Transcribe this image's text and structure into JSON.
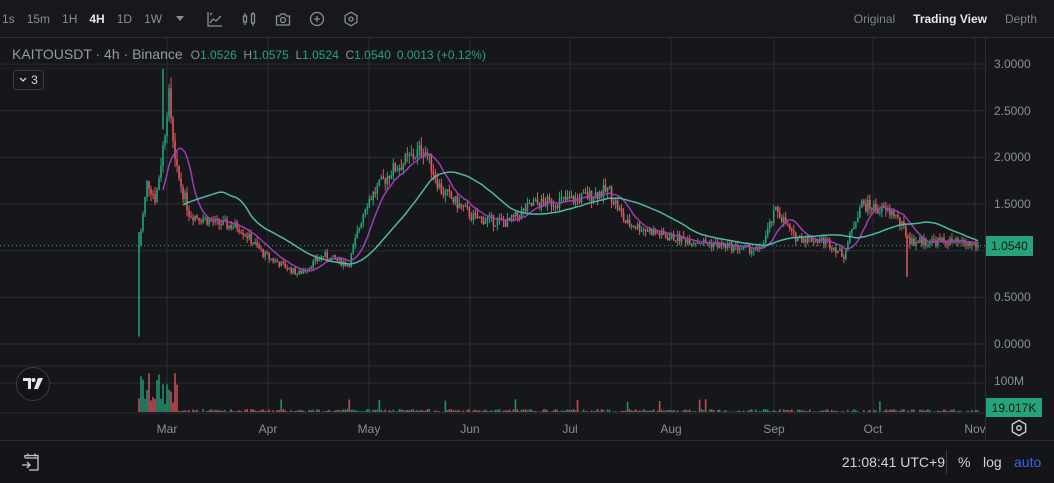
{
  "toolbar": {
    "timeframes": [
      {
        "label": "1s",
        "active": false
      },
      {
        "label": "15m",
        "active": false
      },
      {
        "label": "1H",
        "active": false
      },
      {
        "label": "4H",
        "active": true
      },
      {
        "label": "1D",
        "active": false
      },
      {
        "label": "1W",
        "active": false
      }
    ],
    "icons": [
      "indicators-icon",
      "candlestick-icon",
      "screenshot-icon",
      "add-icon",
      "settings-icon"
    ],
    "view_tabs": [
      {
        "label": "Original",
        "active": false
      },
      {
        "label": "Trading View",
        "active": true
      },
      {
        "label": "Depth",
        "active": false
      }
    ]
  },
  "legend": {
    "symbol": "KAITOUSDT · 4h · Binance",
    "open_label": "O",
    "open": "1.0526",
    "high_label": "H",
    "high": "1.0575",
    "low_label": "L",
    "low": "1.0524",
    "close_label": "C",
    "close": "1.0540",
    "change": "0.0013 (+0.12%)",
    "indicator_count": "3"
  },
  "price_axis": {
    "ticks": [
      "3.0000",
      "2.5000",
      "2.0000",
      "1.5000",
      "0.5000",
      "0.0000"
    ],
    "current_price": "1.0540",
    "volume_tick": "100M",
    "current_volume": "19.017K"
  },
  "time_axis": {
    "labels": [
      "Mar",
      "Apr",
      "May",
      "Jun",
      "Jul",
      "Aug",
      "Sep",
      "Oct",
      "Nov"
    ]
  },
  "footer": {
    "clock": "21:08:41 UTC+9",
    "percent_label": "%",
    "log_label": "log",
    "auto_label": "auto"
  },
  "colors": {
    "up": "#26a37a",
    "down": "#e0575f",
    "ma_fast": "#9c3fb0",
    "ma_slow": "#4fb8a0",
    "auto_active": "#3a63e0"
  },
  "chart_data": {
    "type": "candlestick",
    "title": "KAITOUSDT · 4h · Binance",
    "x_labels": [
      "Mar",
      "Apr",
      "May",
      "Jun",
      "Jul",
      "Aug",
      "Sep",
      "Oct",
      "Nov"
    ],
    "ylim": [
      -0.1,
      3.3
    ],
    "y_ticks": [
      0.0,
      0.5,
      1.0,
      1.5,
      2.0,
      2.5,
      3.0
    ],
    "approx_closes": [
      {
        "x": 0.0,
        "v": 1.05
      },
      {
        "x": 0.01,
        "v": 1.75
      },
      {
        "x": 0.02,
        "v": 1.55
      },
      {
        "x": 0.03,
        "v": 2.2
      },
      {
        "x": 0.035,
        "v": 2.7
      },
      {
        "x": 0.045,
        "v": 1.85
      },
      {
        "x": 0.06,
        "v": 1.4
      },
      {
        "x": 0.09,
        "v": 1.3
      },
      {
        "x": 0.12,
        "v": 1.25
      },
      {
        "x": 0.15,
        "v": 0.95
      },
      {
        "x": 0.19,
        "v": 0.75
      },
      {
        "x": 0.22,
        "v": 0.95
      },
      {
        "x": 0.25,
        "v": 0.85
      },
      {
        "x": 0.27,
        "v": 1.5
      },
      {
        "x": 0.3,
        "v": 1.85
      },
      {
        "x": 0.34,
        "v": 2.1
      },
      {
        "x": 0.36,
        "v": 1.65
      },
      {
        "x": 0.4,
        "v": 1.35
      },
      {
        "x": 0.44,
        "v": 1.3
      },
      {
        "x": 0.47,
        "v": 1.5
      },
      {
        "x": 0.52,
        "v": 1.55
      },
      {
        "x": 0.56,
        "v": 1.65
      },
      {
        "x": 0.58,
        "v": 1.3
      },
      {
        "x": 0.63,
        "v": 1.15
      },
      {
        "x": 0.7,
        "v": 1.05
      },
      {
        "x": 0.74,
        "v": 1.0
      },
      {
        "x": 0.76,
        "v": 1.45
      },
      {
        "x": 0.78,
        "v": 1.15
      },
      {
        "x": 0.82,
        "v": 1.1
      },
      {
        "x": 0.84,
        "v": 0.95
      },
      {
        "x": 0.86,
        "v": 1.5
      },
      {
        "x": 0.9,
        "v": 1.4
      },
      {
        "x": 0.92,
        "v": 1.1
      },
      {
        "x": 0.96,
        "v": 1.1
      },
      {
        "x": 1.0,
        "v": 1.054
      }
    ],
    "notable_points": {
      "all_time_high": 2.95,
      "first_candle_low": 0.08,
      "june_high": 2.42,
      "october_wick_low": 0.72,
      "last_close": 1.054
    },
    "series": [
      {
        "name": "MA fast",
        "color": "#9c3fb0"
      },
      {
        "name": "MA slow",
        "color": "#4fb8a0"
      }
    ],
    "volume": {
      "axis_label": "100M",
      "last": "19.017K"
    },
    "grid": true
  }
}
